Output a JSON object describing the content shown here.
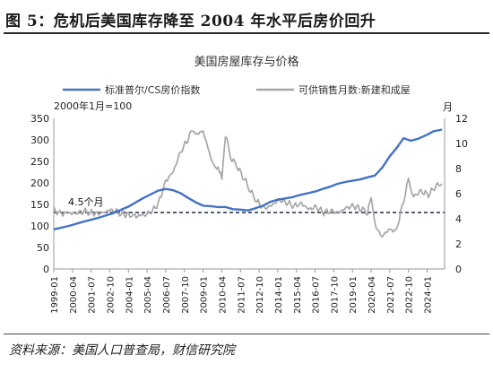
{
  "figure": {
    "title": "图 5：危机后美国库存降至 2004 年水平后房价回升",
    "source": "资料来源：美国人口普查局，财信研究院"
  },
  "chart_data": {
    "type": "line",
    "title": "美国房屋库存与价格",
    "left_axis_note": "2000年1月=100",
    "right_axis_note": "月",
    "annotation": "4.5个月",
    "reference_line": {
      "value": 4.5,
      "axis": "right",
      "style": "dashed",
      "color": "#1f2a44"
    },
    "ylim_left": [
      0,
      350
    ],
    "yticks_left": [
      "0",
      "50",
      "100",
      "150",
      "200",
      "250",
      "300",
      "350"
    ],
    "ylim_right": [
      0,
      12
    ],
    "yticks_right": [
      "0",
      "2",
      "4",
      "6",
      "8",
      "10",
      "12"
    ],
    "x_range": [
      "1999-01",
      "2025-03"
    ],
    "xticks": [
      "1999-01",
      "2000-04",
      "2001-07",
      "2002-10",
      "2004-01",
      "2005-04",
      "2006-07",
      "2007-10",
      "2009-01",
      "2010-04",
      "2011-07",
      "2012-10",
      "2014-01",
      "2015-04",
      "2016-07",
      "2017-10",
      "2019-01",
      "2020-04",
      "2021-07",
      "2022-10",
      "2024-01"
    ],
    "legend_position": "top",
    "series": [
      {
        "name": "标准普尔/CS房价指数",
        "axis": "left",
        "color": "#4472c4",
        "points": [
          [
            "1999-01",
            92
          ],
          [
            "2000-01",
            100
          ],
          [
            "2001-01",
            110
          ],
          [
            "2002-01",
            119
          ],
          [
            "2003-01",
            130
          ],
          [
            "2004-01",
            145
          ],
          [
            "2005-01",
            165
          ],
          [
            "2006-01",
            182
          ],
          [
            "2006-07",
            186
          ],
          [
            "2007-01",
            183
          ],
          [
            "2007-07",
            176
          ],
          [
            "2008-01",
            165
          ],
          [
            "2008-07",
            155
          ],
          [
            "2009-01",
            147
          ],
          [
            "2009-07",
            146
          ],
          [
            "2010-01",
            144
          ],
          [
            "2010-07",
            144
          ],
          [
            "2011-01",
            139
          ],
          [
            "2011-07",
            138
          ],
          [
            "2012-01",
            136
          ],
          [
            "2012-07",
            141
          ],
          [
            "2013-01",
            147
          ],
          [
            "2013-07",
            156
          ],
          [
            "2014-01",
            161
          ],
          [
            "2014-07",
            164
          ],
          [
            "2015-01",
            167
          ],
          [
            "2015-07",
            172
          ],
          [
            "2016-01",
            176
          ],
          [
            "2016-07",
            180
          ],
          [
            "2017-01",
            186
          ],
          [
            "2017-07",
            191
          ],
          [
            "2018-01",
            198
          ],
          [
            "2018-07",
            202
          ],
          [
            "2019-01",
            205
          ],
          [
            "2019-07",
            208
          ],
          [
            "2020-01",
            213
          ],
          [
            "2020-07",
            217
          ],
          [
            "2021-01",
            236
          ],
          [
            "2021-07",
            262
          ],
          [
            "2022-01",
            283
          ],
          [
            "2022-06",
            304
          ],
          [
            "2022-12",
            298
          ],
          [
            "2023-06",
            303
          ],
          [
            "2024-01",
            312
          ],
          [
            "2024-06",
            320
          ],
          [
            "2025-01",
            324
          ]
        ]
      },
      {
        "name": "可供销售月数:新建和成屋",
        "axis": "right",
        "color": "#a6a6a6",
        "points": [
          [
            "1999-01",
            4.7
          ],
          [
            "1999-06",
            4.4
          ],
          [
            "2000-01",
            4.5
          ],
          [
            "2000-06",
            4.4
          ],
          [
            "2001-01",
            4.6
          ],
          [
            "2001-06",
            4.5
          ],
          [
            "2002-01",
            4.4
          ],
          [
            "2002-06",
            4.6
          ],
          [
            "2003-01",
            4.7
          ],
          [
            "2003-06",
            4.4
          ],
          [
            "2004-01",
            4.3
          ],
          [
            "2004-06",
            4.2
          ],
          [
            "2005-01",
            4.3
          ],
          [
            "2005-06",
            4.4
          ],
          [
            "2006-01",
            5.2
          ],
          [
            "2006-07",
            7.0
          ],
          [
            "2007-01",
            7.8
          ],
          [
            "2007-07",
            9.3
          ],
          [
            "2008-01",
            10.4
          ],
          [
            "2008-04",
            11.0
          ],
          [
            "2008-08",
            10.8
          ],
          [
            "2009-01",
            11.0
          ],
          [
            "2009-06",
            9.3
          ],
          [
            "2009-10",
            8.0
          ],
          [
            "2010-01",
            8.2
          ],
          [
            "2010-04",
            7.2
          ],
          [
            "2010-07",
            10.7
          ],
          [
            "2010-11",
            8.9
          ],
          [
            "2011-04",
            8.2
          ],
          [
            "2011-10",
            7.2
          ],
          [
            "2012-03",
            6.2
          ],
          [
            "2012-08",
            5.4
          ],
          [
            "2013-02",
            4.8
          ],
          [
            "2013-08",
            5.1
          ],
          [
            "2014-02",
            5.5
          ],
          [
            "2014-08",
            5.3
          ],
          [
            "2015-02",
            5.0
          ],
          [
            "2015-08",
            5.2
          ],
          [
            "2016-02",
            4.8
          ],
          [
            "2016-08",
            4.9
          ],
          [
            "2017-02",
            4.5
          ],
          [
            "2017-08",
            4.6
          ],
          [
            "2018-02",
            4.5
          ],
          [
            "2018-08",
            4.9
          ],
          [
            "2019-02",
            5.0
          ],
          [
            "2019-08",
            4.8
          ],
          [
            "2020-01",
            4.5
          ],
          [
            "2020-04",
            5.6
          ],
          [
            "2020-08",
            3.3
          ],
          [
            "2021-01",
            2.6
          ],
          [
            "2021-06",
            3.2
          ],
          [
            "2021-12",
            3.0
          ],
          [
            "2022-06",
            5.4
          ],
          [
            "2022-10",
            7.1
          ],
          [
            "2023-02",
            5.8
          ],
          [
            "2023-08",
            6.2
          ],
          [
            "2024-02",
            5.9
          ],
          [
            "2024-08",
            6.6
          ],
          [
            "2025-01",
            6.8
          ]
        ]
      }
    ]
  }
}
